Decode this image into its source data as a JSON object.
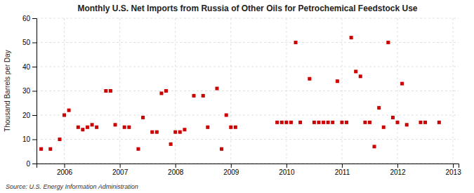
{
  "chart_data": {
    "type": "scatter",
    "title": "Monthly U.S. Net Imports from Russia of Other Oils for Petrochemical Feedstock Use",
    "y_label": "Thousand Barrels per Day",
    "source": "Source: U.S. Energy Information Administration",
    "color": "#cc0000",
    "marker": "square",
    "grid": true,
    "xlim": [
      2005.5,
      2013.1
    ],
    "xticks": [
      2006,
      2007,
      2008,
      2009,
      2010,
      2011,
      2012,
      2013
    ],
    "ylim": [
      0,
      60
    ],
    "yticks": [
      0,
      10,
      20,
      30,
      40,
      50,
      60
    ],
    "x": [
      2005.583,
      2005.75,
      2005.917,
      2006.0,
      2006.083,
      2006.25,
      2006.333,
      2006.417,
      2006.5,
      2006.583,
      2006.75,
      2006.833,
      2006.917,
      2007.083,
      2007.167,
      2007.333,
      2007.417,
      2007.583,
      2007.667,
      2007.75,
      2007.833,
      2007.917,
      2008.0,
      2008.083,
      2008.167,
      2008.333,
      2008.5,
      2008.583,
      2008.75,
      2008.833,
      2008.917,
      2009.0,
      2009.083,
      2009.833,
      2009.917,
      2010.0,
      2010.083,
      2010.167,
      2010.25,
      2010.417,
      2010.5,
      2010.583,
      2010.667,
      2010.75,
      2010.833,
      2010.917,
      2011.0,
      2011.083,
      2011.167,
      2011.25,
      2011.333,
      2011.417,
      2011.5,
      2011.583,
      2011.667,
      2011.75,
      2011.833,
      2011.917,
      2012.0,
      2012.083,
      2012.167,
      2012.417,
      2012.5,
      2012.75
    ],
    "values": [
      6,
      6,
      10,
      20,
      22,
      15,
      14,
      15,
      16,
      15,
      30,
      30,
      16,
      15,
      15,
      6,
      19,
      13,
      13,
      29,
      30,
      8,
      13,
      13,
      14,
      28,
      28,
      15,
      31,
      6,
      20,
      15,
      15,
      17,
      17,
      17,
      17,
      50,
      17,
      35,
      17,
      17,
      17,
      17,
      17,
      34,
      17,
      17,
      52,
      38,
      36,
      17,
      17,
      7,
      23,
      15,
      50,
      19,
      17,
      33,
      16,
      17,
      17,
      17
    ]
  }
}
